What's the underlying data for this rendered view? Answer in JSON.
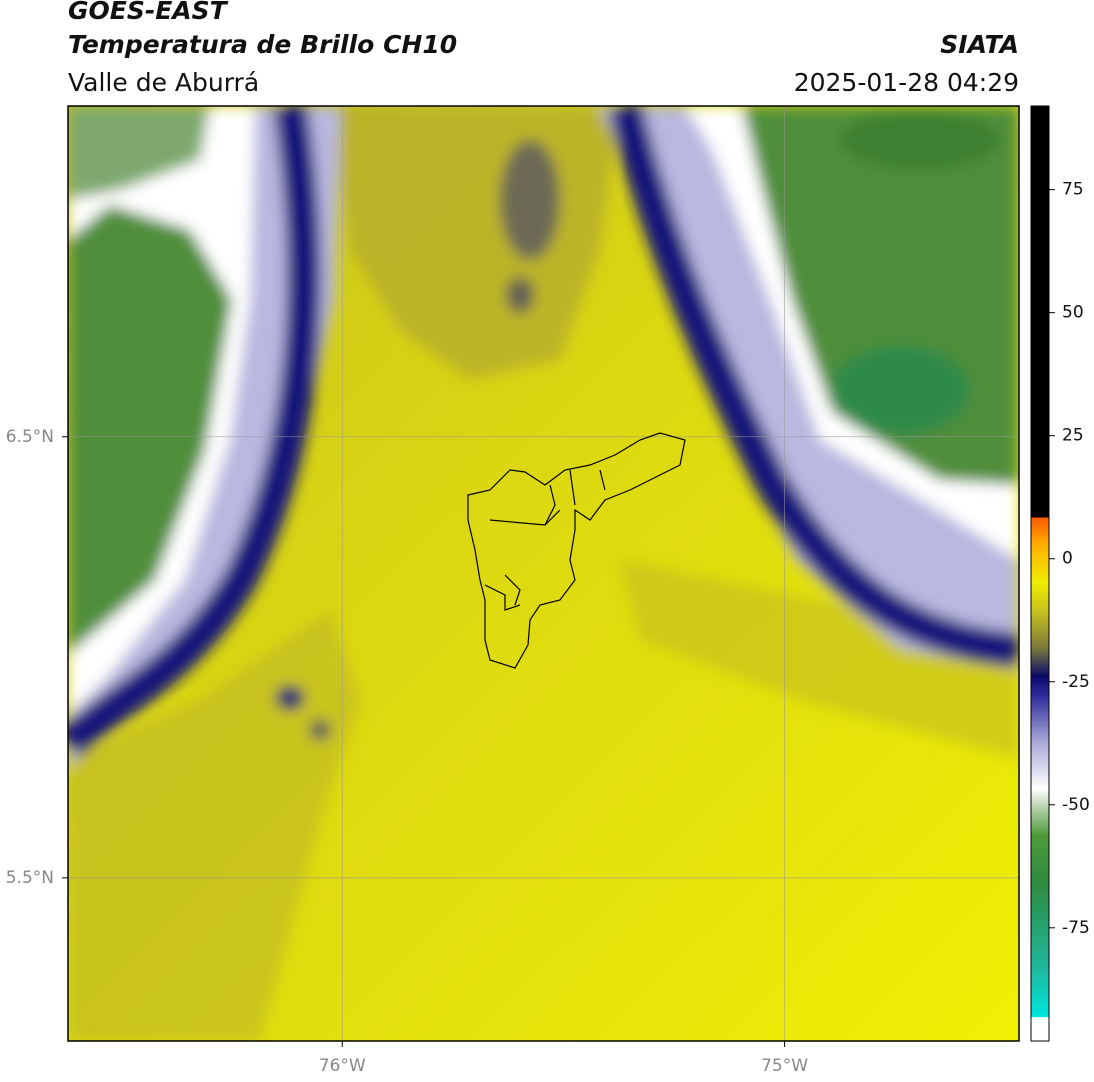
{
  "header": {
    "title": "GOES-EAST",
    "subtitle": "Temperatura de Brillo CH10",
    "source": "SIATA",
    "region": "Valle de Aburrá",
    "timestamp": "2025-01-28 04:29"
  },
  "map": {
    "xlim": [
      -76.62,
      -74.47
    ],
    "ylim": [
      5.13,
      7.25
    ],
    "xticks": [
      {
        "value": -76,
        "label": "76°W"
      },
      {
        "value": -75,
        "label": "75°W"
      }
    ],
    "yticks": [
      {
        "value": 6.5,
        "label": "6.5°N"
      },
      {
        "value": 5.5,
        "label": "5.5°N"
      }
    ],
    "grid": true
  },
  "colorbar": {
    "lim": [
      -98,
      92
    ],
    "ticks": [
      75,
      50,
      25,
      0,
      -25,
      -50,
      -75
    ]
  }
}
